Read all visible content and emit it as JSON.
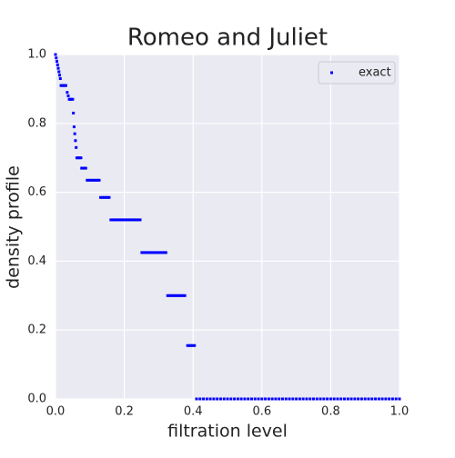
{
  "chart_data": {
    "type": "scatter",
    "title": "Romeo and Juliet",
    "x_label": "filtration level",
    "y_label": "density profile",
    "xlim": [
      0,
      1
    ],
    "ylim": [
      0,
      1
    ],
    "xticks": [
      {
        "value": 0,
        "label": "0.0"
      },
      0.2,
      0.4,
      0.6,
      0.8,
      {
        "value": 1,
        "label": "1.0"
      }
    ],
    "yticks": [
      {
        "value": 0,
        "label": "0.0"
      },
      0.2,
      0.4,
      0.6,
      0.8,
      {
        "value": 1,
        "label": "1.0"
      }
    ],
    "grid": true,
    "legend": "upper right",
    "series": [
      {
        "name": "exact",
        "color": "#0000ff",
        "x": [
          0,
          0.002,
          0.004,
          0.006,
          0.008,
          0.01,
          0.012,
          0.014,
          0.016,
          0.018,
          0.02,
          0.022,
          0.025,
          0.028,
          0.03,
          0.034,
          0.037,
          0.04,
          0.043,
          0.046,
          0.05,
          0.052,
          0.054,
          0.056,
          0.058,
          0.06,
          0.062,
          0.066,
          0.07,
          0.074,
          0.076,
          0.08,
          0.084,
          0.088,
          0.092,
          0.097,
          0.102,
          0.107,
          0.112,
          0.117,
          0.122,
          0.127,
          0.131,
          0.136,
          0.141,
          0.146,
          0.151,
          0.156,
          0.161,
          0.166,
          0.171,
          0.176,
          0.181,
          0.186,
          0.191,
          0.196,
          0.201,
          0.206,
          0.211,
          0.216,
          0.221,
          0.226,
          0.231,
          0.236,
          0.241,
          0.246,
          0.251,
          0.256,
          0.261,
          0.266,
          0.271,
          0.276,
          0.281,
          0.286,
          0.291,
          0.296,
          0.301,
          0.306,
          0.311,
          0.316,
          0.321,
          0.326,
          0.331,
          0.336,
          0.341,
          0.346,
          0.351,
          0.356,
          0.361,
          0.366,
          0.371,
          0.376,
          0.384,
          0.389,
          0.394,
          0.399,
          0.404,
          0.41,
          0.42,
          0.43,
          0.44,
          0.45,
          0.46,
          0.47,
          0.48,
          0.49,
          0.5,
          0.51,
          0.52,
          0.53,
          0.54,
          0.55,
          0.56,
          0.57,
          0.58,
          0.59,
          0.6,
          0.61,
          0.62,
          0.63,
          0.64,
          0.65,
          0.66,
          0.67,
          0.68,
          0.69,
          0.7,
          0.71,
          0.72,
          0.73,
          0.74,
          0.75,
          0.76,
          0.77,
          0.78,
          0.79,
          0.8,
          0.81,
          0.82,
          0.83,
          0.84,
          0.85,
          0.86,
          0.87,
          0.88,
          0.89,
          0.9,
          0.91,
          0.92,
          0.93,
          0.94,
          0.95,
          0.96,
          0.97,
          0.98,
          0.99,
          1.0
        ],
        "values": [
          1.0,
          0.99,
          0.98,
          0.97,
          0.96,
          0.95,
          0.94,
          0.93,
          0.91,
          0.91,
          0.91,
          0.91,
          0.91,
          0.91,
          0.91,
          0.89,
          0.88,
          0.87,
          0.87,
          0.87,
          0.87,
          0.83,
          0.79,
          0.77,
          0.75,
          0.73,
          0.7,
          0.7,
          0.7,
          0.7,
          0.67,
          0.67,
          0.67,
          0.67,
          0.635,
          0.635,
          0.635,
          0.635,
          0.635,
          0.635,
          0.635,
          0.635,
          0.585,
          0.585,
          0.585,
          0.585,
          0.585,
          0.585,
          0.52,
          0.52,
          0.52,
          0.52,
          0.52,
          0.52,
          0.52,
          0.52,
          0.52,
          0.52,
          0.52,
          0.52,
          0.52,
          0.52,
          0.52,
          0.52,
          0.52,
          0.52,
          0.425,
          0.425,
          0.425,
          0.425,
          0.425,
          0.425,
          0.425,
          0.425,
          0.425,
          0.425,
          0.425,
          0.425,
          0.425,
          0.425,
          0.425,
          0.3,
          0.3,
          0.3,
          0.3,
          0.3,
          0.3,
          0.3,
          0.3,
          0.3,
          0.3,
          0.3,
          0.155,
          0.155,
          0.155,
          0.155,
          0.155,
          0,
          0,
          0,
          0,
          0,
          0,
          0,
          0,
          0,
          0,
          0,
          0,
          0,
          0,
          0,
          0,
          0,
          0,
          0,
          0,
          0,
          0,
          0,
          0,
          0,
          0,
          0,
          0,
          0,
          0,
          0,
          0,
          0,
          0,
          0,
          0,
          0,
          0,
          0,
          0,
          0,
          0,
          0,
          0,
          0,
          0,
          0,
          0,
          0,
          0,
          0,
          0,
          0,
          0,
          0,
          0,
          0,
          0,
          0,
          0
        ]
      }
    ]
  }
}
